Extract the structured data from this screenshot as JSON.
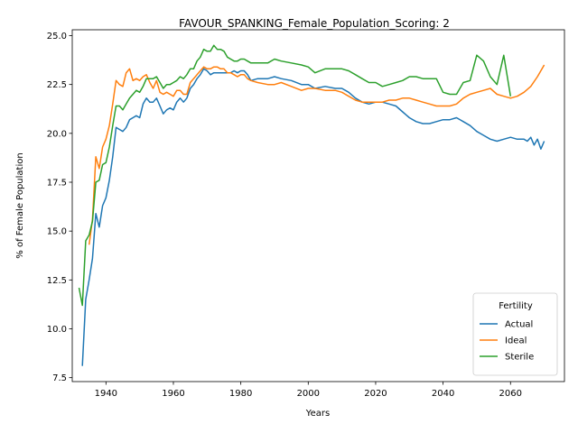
{
  "chart_data": {
    "type": "line",
    "title": "FAVOUR_SPANKING_Female_Population_Scoring: 2",
    "xlabel": "Years",
    "ylabel": "% of Female Population",
    "xlim": [
      1930,
      2076
    ],
    "ylim": [
      7.3,
      25.3
    ],
    "xticks": [
      1940,
      1960,
      1980,
      2000,
      2020,
      2040,
      2060
    ],
    "yticks": [
      7.5,
      10.0,
      12.5,
      15.0,
      17.5,
      20.0,
      22.5,
      25.0
    ],
    "ytick_labels": [
      "7.5",
      "10.0",
      "12.5",
      "15.0",
      "17.5",
      "20.0",
      "22.5",
      "25.0"
    ],
    "grid": false,
    "legend": {
      "title": "Fertility",
      "placement": "bottom-right"
    },
    "series": [
      {
        "name": "Actual",
        "color": "#1f77b4",
        "x": [
          1933,
          1934,
          1935,
          1936,
          1937,
          1938,
          1939,
          1940,
          1941,
          1942,
          1943,
          1944,
          1945,
          1946,
          1947,
          1948,
          1949,
          1950,
          1951,
          1952,
          1953,
          1954,
          1955,
          1956,
          1957,
          1958,
          1959,
          1960,
          1961,
          1962,
          1963,
          1964,
          1965,
          1966,
          1967,
          1968,
          1969,
          1970,
          1971,
          1972,
          1973,
          1974,
          1975,
          1976,
          1977,
          1978,
          1979,
          1980,
          1981,
          1982,
          1983,
          1985,
          1988,
          1990,
          1992,
          1995,
          1998,
          2000,
          2002,
          2005,
          2008,
          2010,
          2012,
          2014,
          2016,
          2018,
          2020,
          2022,
          2024,
          2026,
          2028,
          2030,
          2032,
          2034,
          2036,
          2038,
          2040,
          2042,
          2044,
          2046,
          2048,
          2050,
          2052,
          2054,
          2056,
          2058,
          2060,
          2062,
          2064,
          2065,
          2066,
          2067,
          2068,
          2069,
          2070
        ],
        "y": [
          8.1,
          11.5,
          12.5,
          13.6,
          15.9,
          15.2,
          16.3,
          16.7,
          17.6,
          18.8,
          20.3,
          20.2,
          20.1,
          20.3,
          20.7,
          20.8,
          20.9,
          20.8,
          21.5,
          21.8,
          21.6,
          21.6,
          21.8,
          21.4,
          21.0,
          21.2,
          21.3,
          21.2,
          21.6,
          21.8,
          21.6,
          21.8,
          22.3,
          22.5,
          22.8,
          23.0,
          23.3,
          23.2,
          23.0,
          23.1,
          23.1,
          23.1,
          23.1,
          23.1,
          23.1,
          23.2,
          23.1,
          23.2,
          23.2,
          23.0,
          22.7,
          22.8,
          22.8,
          22.9,
          22.8,
          22.7,
          22.5,
          22.5,
          22.3,
          22.4,
          22.3,
          22.3,
          22.1,
          21.8,
          21.6,
          21.5,
          21.6,
          21.6,
          21.5,
          21.4,
          21.1,
          20.8,
          20.6,
          20.5,
          20.5,
          20.6,
          20.7,
          20.7,
          20.8,
          20.6,
          20.4,
          20.1,
          19.9,
          19.7,
          19.6,
          19.7,
          19.8,
          19.7,
          19.7,
          19.6,
          19.8,
          19.4,
          19.7,
          19.2,
          19.6
        ]
      },
      {
        "name": "Ideal",
        "color": "#ff7f0e",
        "x": [
          1935,
          1936,
          1937,
          1938,
          1939,
          1940,
          1941,
          1942,
          1943,
          1944,
          1945,
          1946,
          1947,
          1948,
          1949,
          1950,
          1951,
          1952,
          1953,
          1954,
          1955,
          1956,
          1957,
          1958,
          1959,
          1960,
          1961,
          1962,
          1963,
          1964,
          1965,
          1966,
          1967,
          1968,
          1969,
          1970,
          1971,
          1972,
          1973,
          1974,
          1975,
          1976,
          1977,
          1978,
          1979,
          1980,
          1981,
          1982,
          1983,
          1985,
          1988,
          1990,
          1992,
          1995,
          1998,
          2000,
          2002,
          2005,
          2008,
          2010,
          2012,
          2014,
          2016,
          2018,
          2020,
          2022,
          2024,
          2026,
          2028,
          2030,
          2032,
          2034,
          2036,
          2038,
          2040,
          2042,
          2044,
          2046,
          2048,
          2050,
          2052,
          2054,
          2056,
          2058,
          2060,
          2062,
          2064,
          2066,
          2068,
          2070
        ],
        "y": [
          14.3,
          15.6,
          18.8,
          18.2,
          19.3,
          19.7,
          20.4,
          21.5,
          22.7,
          22.5,
          22.4,
          23.1,
          23.3,
          22.7,
          22.8,
          22.7,
          22.9,
          23.0,
          22.6,
          22.3,
          22.7,
          22.1,
          22.0,
          22.1,
          22.0,
          21.9,
          22.2,
          22.2,
          22.0,
          22.0,
          22.6,
          22.8,
          23.0,
          23.2,
          23.4,
          23.3,
          23.3,
          23.4,
          23.4,
          23.3,
          23.3,
          23.1,
          23.1,
          23.0,
          22.9,
          23.0,
          23.0,
          22.8,
          22.7,
          22.6,
          22.5,
          22.5,
          22.6,
          22.4,
          22.2,
          22.3,
          22.3,
          22.2,
          22.2,
          22.1,
          21.9,
          21.7,
          21.6,
          21.6,
          21.6,
          21.6,
          21.7,
          21.7,
          21.8,
          21.8,
          21.7,
          21.6,
          21.5,
          21.4,
          21.4,
          21.4,
          21.5,
          21.8,
          22.0,
          22.1,
          22.2,
          22.3,
          22.0,
          21.9,
          21.8,
          21.9,
          22.1,
          22.4,
          22.9,
          23.5
        ]
      },
      {
        "name": "Sterile",
        "color": "#2ca02c",
        "x": [
          1932,
          1933,
          1934,
          1935,
          1936,
          1937,
          1938,
          1939,
          1940,
          1941,
          1942,
          1943,
          1944,
          1945,
          1946,
          1947,
          1948,
          1949,
          1950,
          1951,
          1952,
          1953,
          1954,
          1955,
          1956,
          1957,
          1958,
          1959,
          1960,
          1961,
          1962,
          1963,
          1964,
          1965,
          1966,
          1967,
          1968,
          1969,
          1970,
          1971,
          1972,
          1973,
          1974,
          1975,
          1976,
          1977,
          1978,
          1979,
          1980,
          1981,
          1982,
          1983,
          1985,
          1988,
          1990,
          1992,
          1995,
          1998,
          2000,
          2002,
          2005,
          2008,
          2010,
          2012,
          2014,
          2016,
          2018,
          2020,
          2022,
          2024,
          2026,
          2028,
          2030,
          2032,
          2034,
          2036,
          2038,
          2040,
          2042,
          2044,
          2046,
          2048,
          2050,
          2052,
          2054,
          2056,
          2058,
          2060
        ],
        "y": [
          12.1,
          11.2,
          14.5,
          14.8,
          15.5,
          17.5,
          17.6,
          18.4,
          18.5,
          19.3,
          20.4,
          21.4,
          21.4,
          21.2,
          21.5,
          21.8,
          22.0,
          22.2,
          22.1,
          22.4,
          22.8,
          22.8,
          22.8,
          22.9,
          22.6,
          22.3,
          22.5,
          22.5,
          22.6,
          22.7,
          22.9,
          22.8,
          23.0,
          23.3,
          23.3,
          23.7,
          23.9,
          24.3,
          24.2,
          24.2,
          24.5,
          24.3,
          24.3,
          24.2,
          23.9,
          23.8,
          23.7,
          23.7,
          23.8,
          23.8,
          23.7,
          23.6,
          23.6,
          23.6,
          23.8,
          23.7,
          23.6,
          23.5,
          23.4,
          23.1,
          23.3,
          23.3,
          23.3,
          23.2,
          23.0,
          22.8,
          22.6,
          22.6,
          22.4,
          22.5,
          22.6,
          22.7,
          22.9,
          22.9,
          22.8,
          22.8,
          22.8,
          22.1,
          22.0,
          22.0,
          22.6,
          22.7,
          24.0,
          23.7,
          22.9,
          22.5,
          24.0,
          21.9
        ]
      }
    ]
  }
}
